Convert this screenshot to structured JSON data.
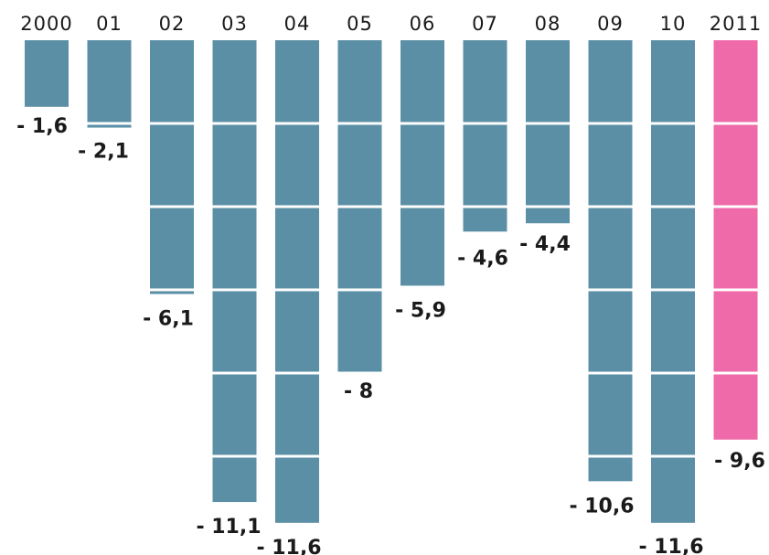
{
  "chart_data": {
    "type": "bar",
    "categories": [
      "2000",
      "01",
      "02",
      "03",
      "04",
      "05",
      "06",
      "07",
      "08",
      "09",
      "10",
      "2011"
    ],
    "values": [
      -1.6,
      -2.1,
      -6.1,
      -11.1,
      -11.6,
      -8,
      -5.9,
      -4.6,
      -4.4,
      -10.6,
      -11.6,
      -9.6
    ],
    "value_labels": [
      "- 1,6",
      "- 2,1",
      "- 6,1",
      "- 11,1",
      "- 11,6",
      "- 8",
      "- 5,9",
      "- 4,6",
      "- 4,4",
      "- 10,6",
      "- 11,6",
      "- 9,6"
    ],
    "ylim": [
      -12,
      0
    ],
    "gridlines": [
      -2,
      -4,
      -6,
      -8,
      -10
    ],
    "highlight_index": 11,
    "colors": {
      "bar": "#5b8fa6",
      "highlight": "#ef6aa8",
      "grid": "#ffffff",
      "text": "#1a1a1a"
    },
    "title": "",
    "xlabel": "",
    "ylabel": ""
  }
}
